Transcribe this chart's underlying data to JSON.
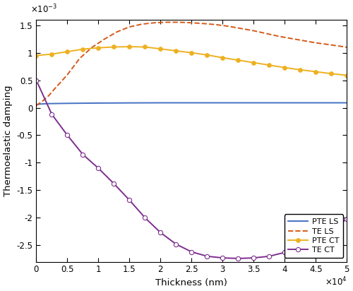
{
  "title": "",
  "xlabel": "Thickness (nm)",
  "ylabel": "Thermoelastic damping",
  "xlim": [
    0,
    50000
  ],
  "ylim": [
    -0.0028,
    0.0016
  ],
  "xtick_labels": [
    "0",
    "0.5",
    "1",
    "1.5",
    "2",
    "2.5",
    "3",
    "3.5",
    "4",
    "4.5",
    "5"
  ],
  "ytick_labels": [
    "-2.5",
    "-2",
    "-1.5",
    "-1",
    "-0.5",
    "0",
    "0.5",
    "1",
    "1.5"
  ],
  "xtick_values": [
    0,
    5000,
    10000,
    15000,
    20000,
    25000,
    30000,
    35000,
    40000,
    45000,
    50000
  ],
  "ytick_values": [
    -0.0025,
    -0.002,
    -0.0015,
    -0.001,
    -0.0005,
    0,
    0.0005,
    0.001,
    0.0015
  ],
  "PTE_LS": {
    "label": "PTE LS",
    "color": "#4472C4",
    "linestyle": "-",
    "linewidth": 1.4,
    "marker": null,
    "x": [
      0,
      1000,
      2000,
      5000,
      10000,
      15000,
      20000,
      25000,
      30000,
      35000,
      40000,
      45000,
      50000
    ],
    "y": [
      6e-05,
      7e-05,
      7.5e-05,
      8e-05,
      8.5e-05,
      8.8e-05,
      9e-05,
      9e-05,
      9e-05,
      9e-05,
      9e-05,
      9e-05,
      9e-05
    ]
  },
  "TE_LS": {
    "label": "TE LS",
    "color": "#D45A1A",
    "linestyle": "--",
    "linewidth": 1.4,
    "marker": null,
    "x": [
      0,
      1000,
      2000,
      3000,
      5000,
      7000,
      9000,
      11000,
      13000,
      15000,
      17000,
      19000,
      21000,
      23000,
      25000,
      27000,
      29000,
      31000,
      33000,
      35000,
      37000,
      39000,
      41000,
      43000,
      45000,
      47000,
      50000
    ],
    "y": [
      4e-05,
      0.00012,
      0.00022,
      0.00035,
      0.0006,
      0.0009,
      0.0011,
      0.00125,
      0.00138,
      0.00147,
      0.00152,
      0.001545,
      0.001555,
      0.001555,
      0.001545,
      0.00153,
      0.00151,
      0.00148,
      0.00144,
      0.0014,
      0.00135,
      0.0013,
      0.00126,
      0.00122,
      0.00118,
      0.00115,
      0.0011
    ]
  },
  "PTE_CT": {
    "label": "PTE CT",
    "color": "#EDB120",
    "linestyle": "-",
    "linewidth": 1.4,
    "marker": "o",
    "marker_size": 4,
    "marker_fillcolor": "#EDB120",
    "x": [
      0,
      2500,
      5000,
      7500,
      10000,
      12500,
      15000,
      17500,
      20000,
      22500,
      25000,
      27500,
      30000,
      32500,
      35000,
      37500,
      40000,
      42500,
      45000,
      47500,
      50000
    ],
    "y": [
      0.00095,
      0.000975,
      0.00102,
      0.001065,
      0.00109,
      0.001105,
      0.00111,
      0.001105,
      0.00107,
      0.001035,
      0.001,
      0.00096,
      0.00091,
      0.000865,
      0.00082,
      0.000775,
      0.00073,
      0.00069,
      0.000655,
      0.00062,
      0.00059
    ]
  },
  "TE_CT": {
    "label": "TE CT",
    "color": "#7E2F8E",
    "linestyle": "-",
    "linewidth": 1.4,
    "marker": "o",
    "marker_size": 4.5,
    "marker_fillcolor": "white",
    "x": [
      0,
      2500,
      5000,
      7500,
      10000,
      12500,
      15000,
      17500,
      20000,
      22500,
      25000,
      27500,
      30000,
      32500,
      35000,
      37500,
      40000,
      42500,
      45000,
      47500,
      50000
    ],
    "y": [
      0.0005,
      -0.00012,
      -0.0005,
      -0.00085,
      -0.0011,
      -0.00138,
      -0.00168,
      -0.002,
      -0.00227,
      -0.00248,
      -0.00262,
      -0.0027,
      -0.00273,
      -0.00274,
      -0.00273,
      -0.0027,
      -0.00263,
      -0.00252,
      -0.00238,
      -0.00222,
      -0.00202
    ]
  },
  "legend_loc": "lower right",
  "figsize": [
    5.0,
    4.12
  ],
  "dpi": 100,
  "bg_color": "#FFFFFF",
  "axes_bg_color": "#FFFFFF"
}
